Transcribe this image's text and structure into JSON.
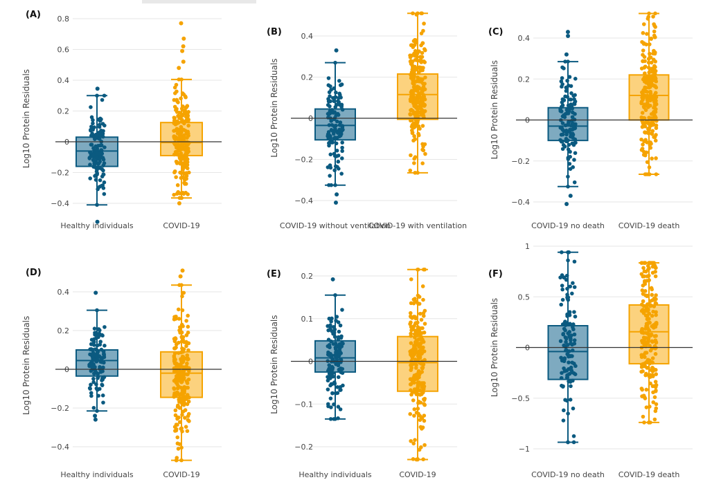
{
  "colors": {
    "group1": "#0b5a80",
    "group1_fill": "#7eaac0",
    "group2": "#f5a300",
    "group2_fill": "#fcd27e",
    "grid": "#e6e6e6",
    "zero_line": "#333333"
  },
  "chart_data": [
    {
      "type": "box",
      "panel": "(A)",
      "ylabel": "Log10 Protein Residuals",
      "ylim": [
        -0.5,
        0.8
      ],
      "yticks": [
        0.8,
        0.6,
        0.4,
        0.2,
        0,
        -0.2,
        -0.4
      ],
      "ytick_labels": [
        "0.8",
        "0.6",
        "0.4",
        "0.2",
        "0",
        "−0.2",
        "−0.4"
      ],
      "grid": true,
      "categories": [
        "Healthy individuals",
        "COVID-19"
      ],
      "boxes": [
        {
          "q1": -0.16,
          "median": -0.06,
          "q3": 0.03,
          "whisker_low": -0.41,
          "whisker_high": 0.3,
          "outliers": [
            0.345,
            -0.52
          ]
        },
        {
          "q1": -0.09,
          "median": -0.005,
          "q3": 0.125,
          "whisker_low": -0.365,
          "whisker_high": 0.405,
          "outliers": [
            0.48,
            0.52,
            0.59,
            0.62,
            0.67,
            0.77,
            -0.4
          ]
        }
      ]
    },
    {
      "type": "box",
      "panel": "(B)",
      "ylabel": "Log10 Protein Residuals",
      "ylim": [
        -0.42,
        0.52
      ],
      "yticks": [
        0.4,
        0.2,
        0,
        -0.2,
        -0.4
      ],
      "ytick_labels": [
        "0.4",
        "0.2",
        "0",
        "−0.2",
        "−0.4"
      ],
      "grid": true,
      "categories": [
        "COVID-19 without ventilation",
        "COVID-19 with ventilation"
      ],
      "boxes": [
        {
          "q1": -0.105,
          "median": -0.035,
          "q3": 0.045,
          "whisker_low": -0.325,
          "whisker_high": 0.27,
          "outliers": [
            0.33,
            -0.37,
            -0.41
          ]
        },
        {
          "q1": -0.005,
          "median": 0.115,
          "q3": 0.215,
          "whisker_low": -0.265,
          "whisker_high": 0.51,
          "outliers": []
        }
      ]
    },
    {
      "type": "box",
      "panel": "(C)",
      "ylabel": "Log10 Protein Residuals",
      "ylim": [
        -0.42,
        0.52
      ],
      "yticks": [
        0.4,
        0.2,
        0,
        -0.2,
        -0.4
      ],
      "ytick_labels": [
        "0.4",
        "0.2",
        "0",
        "−0.2",
        "−0.4"
      ],
      "grid": true,
      "categories": [
        "COVID-19 no death",
        "COVID-19 death"
      ],
      "boxes": [
        {
          "q1": -0.1,
          "median": -0.03,
          "q3": 0.06,
          "whisker_low": -0.325,
          "whisker_high": 0.285,
          "outliers": [
            0.32,
            0.43,
            0.41,
            -0.37,
            -0.41
          ]
        },
        {
          "q1": 0.0,
          "median": 0.12,
          "q3": 0.22,
          "whisker_low": -0.265,
          "whisker_high": 0.52,
          "outliers": []
        }
      ]
    },
    {
      "type": "box",
      "panel": "(D)",
      "ylabel": "Log10 Protein Residuals",
      "ylim": [
        -0.48,
        0.52
      ],
      "yticks": [
        0.4,
        0.2,
        0,
        -0.2,
        -0.4
      ],
      "ytick_labels": [
        "0.4",
        "0.2",
        "0",
        "−0.2",
        "−0.4"
      ],
      "grid": true,
      "categories": [
        "Healthy individuals",
        "COVID-19"
      ],
      "boxes": [
        {
          "q1": -0.035,
          "median": 0.045,
          "q3": 0.1,
          "whisker_low": -0.215,
          "whisker_high": 0.305,
          "outliers": [
            0.395,
            -0.24,
            -0.26
          ]
        },
        {
          "q1": -0.145,
          "median": -0.02,
          "q3": 0.09,
          "whisker_low": -0.47,
          "whisker_high": 0.435,
          "outliers": [
            0.48,
            0.51
          ]
        }
      ]
    },
    {
      "type": "box",
      "panel": "(E)",
      "ylabel": "Log10 Protein Residuals",
      "ylim": [
        -0.23,
        0.215
      ],
      "yticks": [
        0.2,
        0.1,
        0,
        -0.1,
        -0.2
      ],
      "ytick_labels": [
        "0.2",
        "0.1",
        "0",
        "−0.1",
        "−0.2"
      ],
      "grid": true,
      "categories": [
        "Healthy individuals",
        "COVID-19"
      ],
      "boxes": [
        {
          "q1": -0.025,
          "median": 0.008,
          "q3": 0.048,
          "whisker_low": -0.135,
          "whisker_high": 0.155,
          "outliers": [
            0.192
          ]
        },
        {
          "q1": -0.07,
          "median": -0.003,
          "q3": 0.058,
          "whisker_low": -0.23,
          "whisker_high": 0.215,
          "outliers": []
        }
      ]
    },
    {
      "type": "box",
      "panel": "(F)",
      "ylabel": "Log10 Protein Residuals",
      "ylim": [
        -1,
        1
      ],
      "yticks": [
        1,
        0.5,
        0,
        -0.5,
        -1
      ],
      "ytick_labels": [
        "1",
        "0.5",
        "0",
        "−0.5",
        "−1"
      ],
      "grid": true,
      "categories": [
        "COVID-19 no death",
        "COVID-19 death"
      ],
      "boxes": [
        {
          "q1": -0.315,
          "median": -0.04,
          "q3": 0.215,
          "whisker_low": -0.935,
          "whisker_high": 0.94,
          "outliers": []
        },
        {
          "q1": -0.16,
          "median": 0.155,
          "q3": 0.42,
          "whisker_low": -0.74,
          "whisker_high": 0.835,
          "outliers": []
        }
      ]
    }
  ]
}
